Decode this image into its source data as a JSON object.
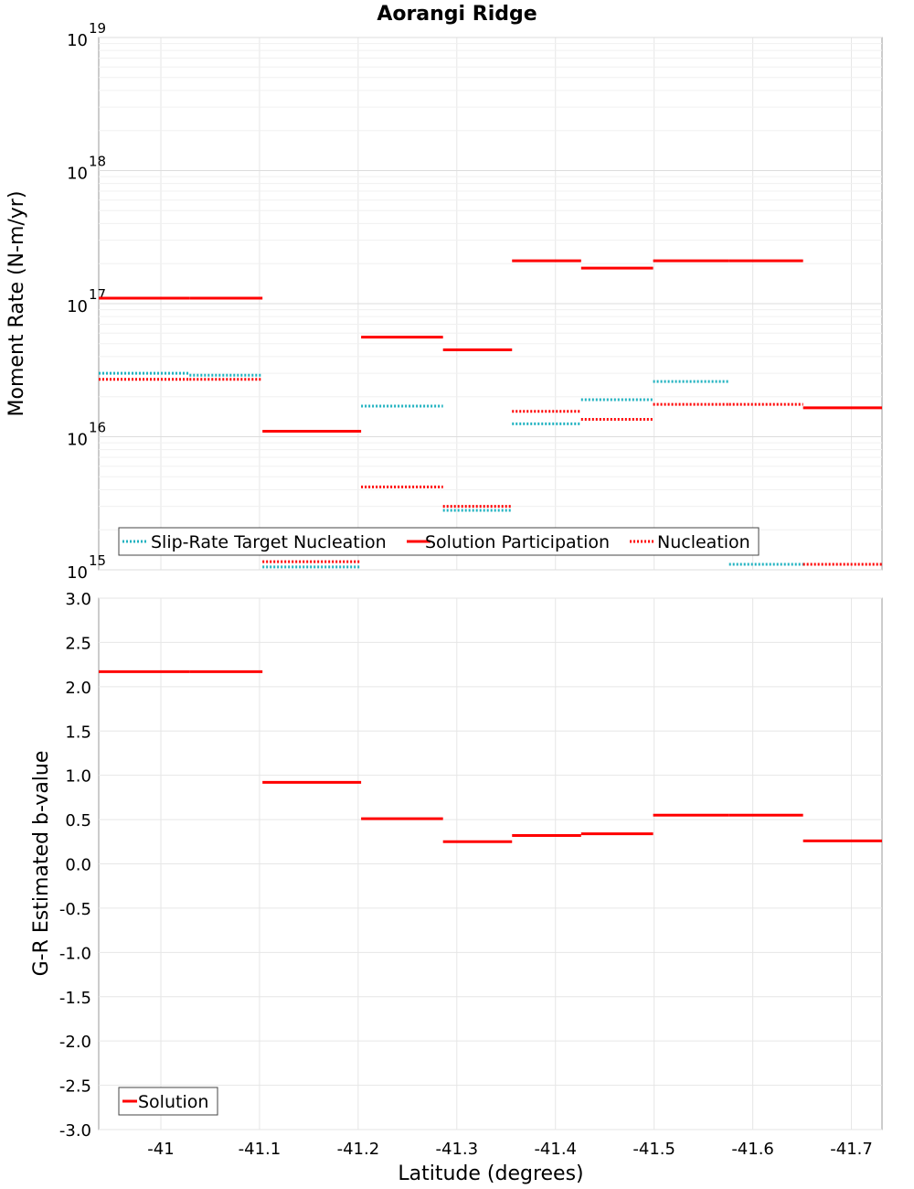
{
  "chart_data": {
    "title": "Aorangi Ridge",
    "xlabel": "Latitude (degrees)",
    "x_ticks": [
      "-41",
      "-41.1",
      "-41.2",
      "-41.3",
      "-41.4",
      "-41.5",
      "-41.6",
      "-41.7"
    ],
    "x_tick_values": [
      -41,
      -41.1,
      -41.2,
      -41.3,
      -41.4,
      -41.5,
      -41.6,
      -41.7
    ],
    "xlim": [
      -40.937,
      -41.731
    ],
    "segment_edges": [
      -40.937,
      -41.029,
      -41.103,
      -41.203,
      -41.286,
      -41.356,
      -41.426,
      -41.499,
      -41.576,
      -41.651,
      -41.731
    ],
    "colors": {
      "target": "#20b2c0",
      "solution": "#ff0000",
      "nucleation": "#ff0000"
    },
    "panels": [
      {
        "type": "line",
        "ylabel": "Moment Rate (N-m/yr)",
        "yscale": "log",
        "ylim": [
          1000000000000000.0,
          1e+19
        ],
        "y_ticks": [
          {
            "base": "10",
            "exp": "15"
          },
          {
            "base": "10",
            "exp": "16"
          },
          {
            "base": "10",
            "exp": "17"
          },
          {
            "base": "10",
            "exp": "18"
          },
          {
            "base": "10",
            "exp": "19"
          }
        ],
        "legend": [
          "Slip-Rate Target Nucleation",
          "Solution Participation",
          "Nucleation"
        ],
        "legend_position": "bottom-left",
        "series": [
          {
            "name": "Slip-Rate Target Nucleation",
            "style": "dotted",
            "color": "#20b2c0",
            "values": [
              3e+16,
              2.9e+16,
              1050000000000000.0,
              1.7e+16,
              2800000000000000.0,
              1.25e+16,
              1.9e+16,
              2.6e+16,
              1100000000000000.0,
              null
            ]
          },
          {
            "name": "Solution Participation",
            "style": "solid",
            "color": "#ff0000",
            "values": [
              1.1e+17,
              1.1e+17,
              1.1e+16,
              5.6e+16,
              4.5e+16,
              2.1e+17,
              1.85e+17,
              2.1e+17,
              2.1e+17,
              1.65e+16
            ]
          },
          {
            "name": "Nucleation",
            "style": "dotted",
            "color": "#ff0000",
            "values": [
              2.7e+16,
              2.7e+16,
              1150000000000000.0,
              4200000000000000.0,
              3000000000000000.0,
              1.55e+16,
              1.35e+16,
              1.75e+16,
              1.75e+16,
              1100000000000000.0
            ]
          }
        ]
      },
      {
        "type": "line",
        "ylabel": "G-R Estimated b-value",
        "yscale": "linear",
        "ylim": [
          -3.0,
          3.0
        ],
        "y_ticks": [
          "-3.0",
          "-2.5",
          "-2.0",
          "-1.5",
          "-1.0",
          "-0.5",
          "0.0",
          "0.5",
          "1.0",
          "1.5",
          "2.0",
          "2.5",
          "3.0"
        ],
        "legend": [
          "Solution"
        ],
        "legend_position": "bottom-left",
        "series": [
          {
            "name": "Solution",
            "style": "solid",
            "color": "#ff0000",
            "values": [
              2.17,
              2.17,
              0.92,
              0.51,
              0.25,
              0.32,
              0.34,
              0.55,
              0.55,
              0.26
            ]
          }
        ]
      }
    ]
  }
}
